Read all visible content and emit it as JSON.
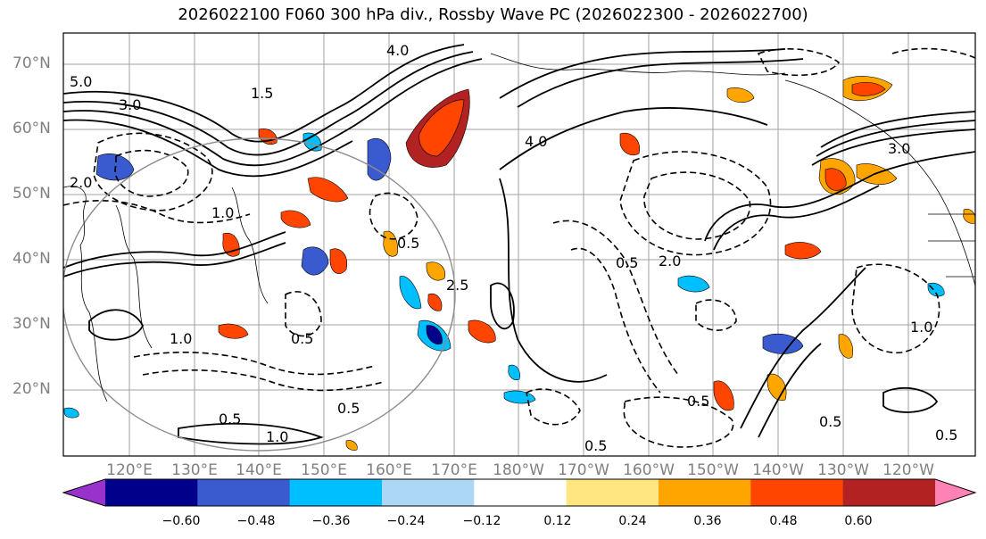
{
  "title": "2026022100 F060 300 hPa div., Rossby Wave PC (2026022300 - 2026022700)",
  "lat_labels": [
    "70°N",
    "60°N",
    "50°N",
    "40°N",
    "30°N",
    "20°N"
  ],
  "lon_labels": [
    "120°E",
    "130°E",
    "140°E",
    "150°E",
    "160°E",
    "170°E",
    "180°W",
    "170°W",
    "160°W",
    "150°W",
    "140°W",
    "130°W",
    "120°W"
  ],
  "colorbar": {
    "ticks": [
      "−0.60",
      "−0.48",
      "−0.36",
      "−0.24",
      "−0.12",
      "0.12",
      "0.24",
      "0.36",
      "0.48",
      "0.60"
    ],
    "colors": [
      "#9932cc",
      "#00008b",
      "#3a5bd0",
      "#00bfff",
      "#add8f5",
      "#ffffff",
      "#ffe680",
      "#ffa500",
      "#ff4500",
      "#b22222",
      "#ff82b4"
    ]
  },
  "contour_labels": [
    "5.0",
    "3.0",
    "2.0",
    "1.0",
    "4.0",
    "1.5",
    "0.5",
    "2.5",
    "4.0",
    "3.0",
    "0.5",
    "0.5",
    "1.0",
    "0.5",
    "0.5",
    "0.5",
    "2.0",
    "1.0",
    "0.5",
    "0.5",
    "1.0",
    "0.5"
  ]
}
